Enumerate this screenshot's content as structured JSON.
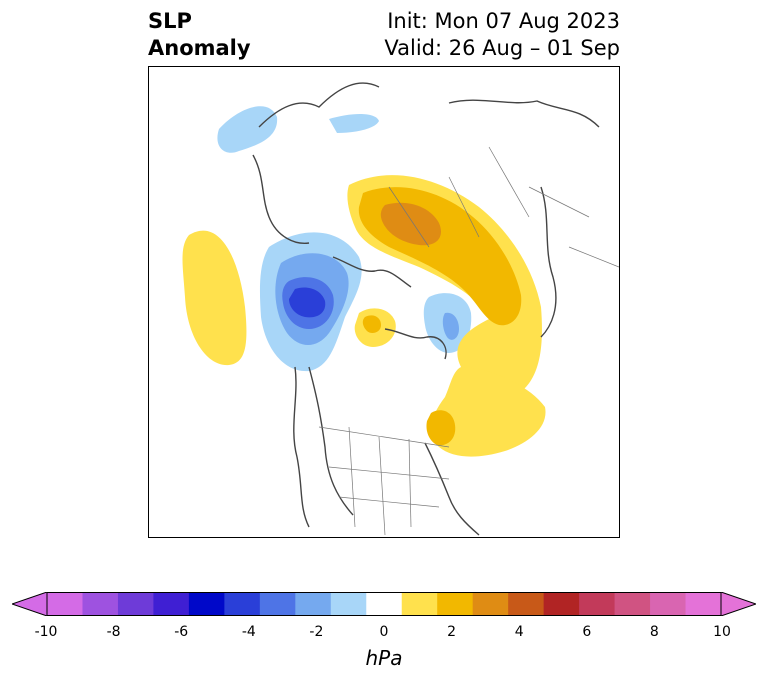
{
  "title": {
    "left_line1": "SLP",
    "left_line2": "Anomaly",
    "right_line1": "Init: Mon 07 Aug 2023",
    "right_line2": "Valid: 26 Aug – 01 Sep"
  },
  "colorbar": {
    "units": "hPa",
    "tick_labels": [
      "-10",
      "-8",
      "-6",
      "-4",
      "-2",
      "0",
      "2",
      "4",
      "6",
      "8",
      "10"
    ],
    "levels": [
      "#d46be6",
      "#9e52e0",
      "#6e3bd8",
      "#3f1fd3",
      "#0008c9",
      "#2a3fd8",
      "#4e74e6",
      "#75a9ef",
      "#a8d6f8",
      "#ffffff",
      "#ffe14d",
      "#f2b800",
      "#df8c14",
      "#c85918",
      "#b12424",
      "#c23a5a",
      "#d05382",
      "#d965b1",
      "#e472d8"
    ],
    "extend_min_color": "#d46be6",
    "extend_max_color": "#e472d8"
  },
  "map": {
    "projection": "north polar stereographic",
    "negative_colors": [
      "#a8d6f8",
      "#75a9ef",
      "#4e74e6",
      "#2a3fd8"
    ],
    "positive_colors": [
      "#ffe14d",
      "#f2b800",
      "#df8c14"
    ]
  }
}
